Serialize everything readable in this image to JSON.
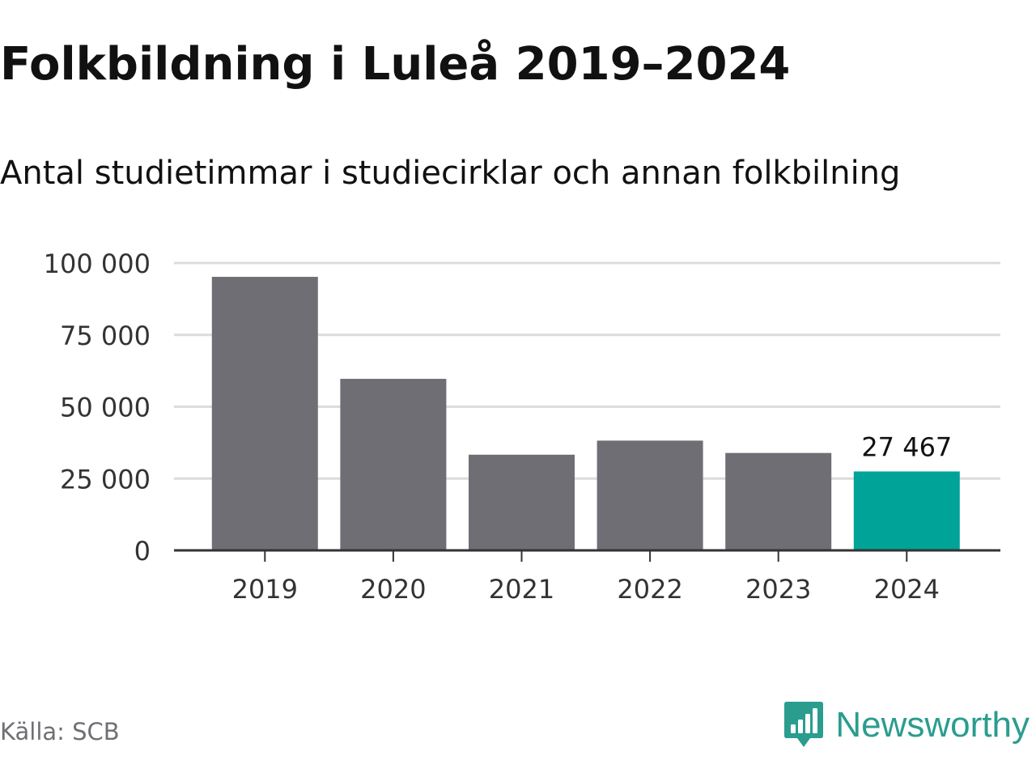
{
  "header": {
    "title": "Folkbildning i Luleå 2019–2024",
    "subtitle": "Antal studietimmar i studiecirklar och annan folkbilning"
  },
  "footer": {
    "source": "Källa: SCB",
    "brand": "Newsworthy",
    "brand_icon": "newsworthy-logo-icon"
  },
  "colors": {
    "bar": "#6f6e75",
    "highlight": "#00a398",
    "grid": "#dcdcdc",
    "axis": "#333333",
    "brand": "#2a9d8f"
  },
  "chart_data": {
    "type": "bar",
    "categories": [
      "2019",
      "2020",
      "2021",
      "2022",
      "2023",
      "2024"
    ],
    "values": [
      95200,
      59700,
      33300,
      38200,
      33900,
      27467
    ],
    "highlight_index": 5,
    "data_labels": [
      {
        "index": 5,
        "text": "27 467"
      }
    ],
    "title": "Folkbildning i Luleå 2019–2024",
    "subtitle": "Antal studietimmar i studiecirklar och annan folkbilning",
    "xlabel": "",
    "ylabel": "",
    "ylim": [
      0,
      100000
    ],
    "yticks": [
      0,
      25000,
      50000,
      75000,
      100000
    ],
    "ytick_labels": [
      "0",
      "25 000",
      "50 000",
      "75 000",
      "100 000"
    ],
    "grid": true,
    "legend": "none"
  }
}
